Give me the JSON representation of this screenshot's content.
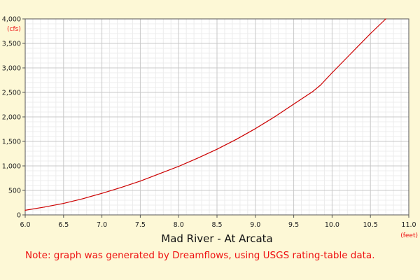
{
  "chart_data": {
    "type": "line",
    "title": "Mad River - At Arcata",
    "xlabel": "",
    "ylabel": "",
    "x_unit": "(feet)",
    "y_unit": "(cfs)",
    "xlim": [
      6.0,
      11.0
    ],
    "ylim": [
      0,
      4000
    ],
    "x_ticks": [
      "6.0",
      "6.5",
      "7.0",
      "7.5",
      "8.0",
      "8.5",
      "9.0",
      "9.5",
      "10.0",
      "10.5",
      "11.0"
    ],
    "y_ticks": [
      "0",
      "500",
      "1,000",
      "1,500",
      "2,000",
      "2,500",
      "3,000",
      "3,500",
      "4,000"
    ],
    "grid": true,
    "series": [
      {
        "color": "#cc0000",
        "x": [
          6.0,
          6.25,
          6.5,
          6.75,
          7.0,
          7.25,
          7.5,
          7.75,
          8.0,
          8.25,
          8.5,
          8.75,
          9.0,
          9.25,
          9.5,
          9.75,
          9.85,
          10.0,
          10.25,
          10.5,
          10.7
        ],
        "y": [
          95,
          160,
          235,
          330,
          440,
          560,
          690,
          840,
          990,
          1160,
          1340,
          1540,
          1760,
          2000,
          2260,
          2520,
          2650,
          2900,
          3300,
          3700,
          4000
        ]
      }
    ]
  },
  "note": "Note: graph was generated by Dreamflows, using USGS rating-table data.",
  "colors": {
    "background": "#fdf8d6",
    "plot_background": "#ffffff",
    "accent": "#cc0000",
    "note_text": "#ee1111"
  }
}
